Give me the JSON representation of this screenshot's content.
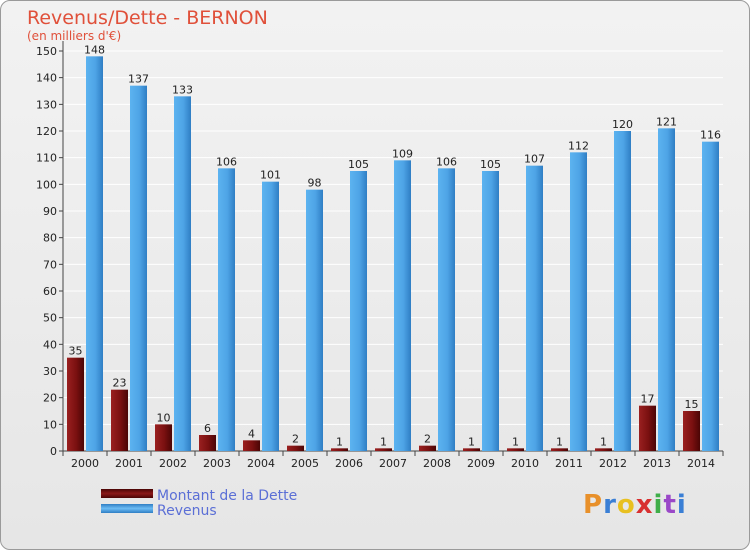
{
  "chart_data": {
    "type": "bar",
    "title": "Revenus/Dette - BERNON",
    "subtitle": "(en milliers d'€)",
    "categories": [
      "2000",
      "2001",
      "2002",
      "2003",
      "2004",
      "2005",
      "2006",
      "2007",
      "2008",
      "2009",
      "2010",
      "2011",
      "2012",
      "2013",
      "2014"
    ],
    "series": [
      {
        "name": "Montant de la Dette",
        "color": "#7a1010",
        "values": [
          35,
          23,
          10,
          6,
          4,
          2,
          1,
          1,
          2,
          1,
          1,
          1,
          1,
          17,
          15
        ]
      },
      {
        "name": "Revenus",
        "color": "#4ea4e6",
        "values": [
          148,
          137,
          133,
          106,
          101,
          98,
          105,
          109,
          106,
          105,
          107,
          112,
          120,
          121,
          116
        ]
      }
    ],
    "ylim": [
      0,
      150
    ],
    "yticks": [
      0,
      10,
      20,
      30,
      40,
      50,
      60,
      70,
      80,
      90,
      100,
      110,
      120,
      130,
      140,
      150
    ],
    "grid": true,
    "legend_position": "bottom-left"
  },
  "logo": {
    "text": "Proxiti",
    "colors": [
      "#e8902a",
      "#3a7fd5",
      "#e8c020",
      "#d83030",
      "#3fae49",
      "#9a48c8",
      "#3a7fd5"
    ]
  }
}
